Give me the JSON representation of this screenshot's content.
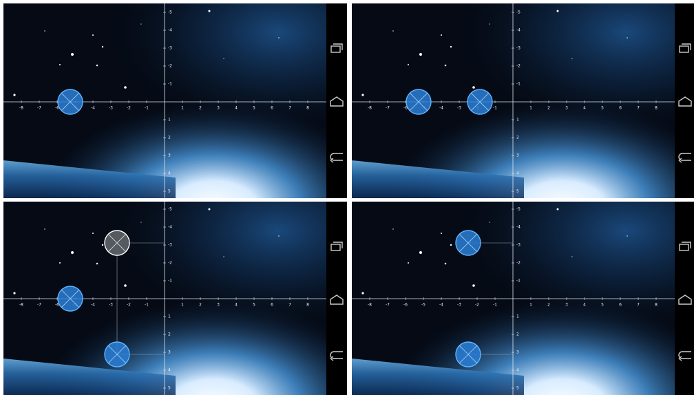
{
  "screen": {
    "x_axis_labels": [
      "-8",
      "-7",
      "-6",
      "-5",
      "-4",
      "-3",
      "-2",
      "-1",
      "1",
      "2",
      "3",
      "4",
      "5",
      "6",
      "7",
      "8"
    ],
    "y_axis_labels": [
      "-5",
      "-4",
      "-3",
      "-2",
      "-1",
      "1",
      "2",
      "3",
      "4",
      "5"
    ]
  }
}
